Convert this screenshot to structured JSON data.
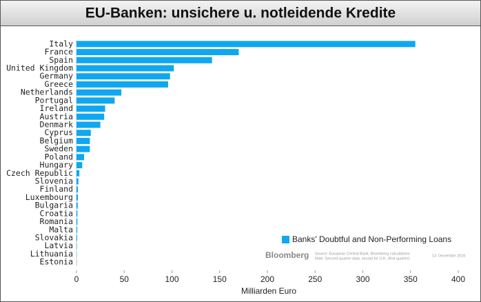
{
  "chart_data": {
    "type": "bar",
    "orientation": "horizontal",
    "title": "EU-Banken: unsichere u. notleidende Kredite",
    "categories": [
      "Italy",
      "France",
      "Spain",
      "United Kingdom",
      "Germany",
      "Greece",
      "Netherlands",
      "Portugal",
      "Ireland",
      "Austria",
      "Denmark",
      "Cyprus",
      "Belgium",
      "Sweden",
      "Poland",
      "Hungary",
      "Czech Republic",
      "Slovenia",
      "Finland",
      "Luxembourg",
      "Bulgaria",
      "Croatia",
      "Romania",
      "Malta",
      "Slovakia",
      "Latvia",
      "Lithuania",
      "Estonia"
    ],
    "series": [
      {
        "name": "Banks' Doubtful and Non-Performing Loans",
        "color": "#0fa8f0",
        "values": [
          355,
          170,
          142,
          102,
          98,
          96,
          47,
          40,
          30,
          29,
          25,
          15,
          14,
          14,
          8,
          6,
          3,
          2,
          1.5,
          1.5,
          1.3,
          1,
          1,
          0.8,
          0.7,
          0.4,
          0.2,
          0.1
        ]
      }
    ],
    "xlabel": "Milliarden Euro",
    "xlim": [
      0,
      400
    ],
    "xticks": [
      0,
      50,
      100,
      150,
      200,
      250,
      300,
      350,
      400
    ],
    "legend": "lower-right",
    "source": {
      "brand": "Bloomberg",
      "line1": "Source: European Central Bank, Bloomberg calculations",
      "line2": "Note: Second-quarter data, except for U.K. (first quarter)",
      "date": "13. Dezember 2016"
    }
  }
}
